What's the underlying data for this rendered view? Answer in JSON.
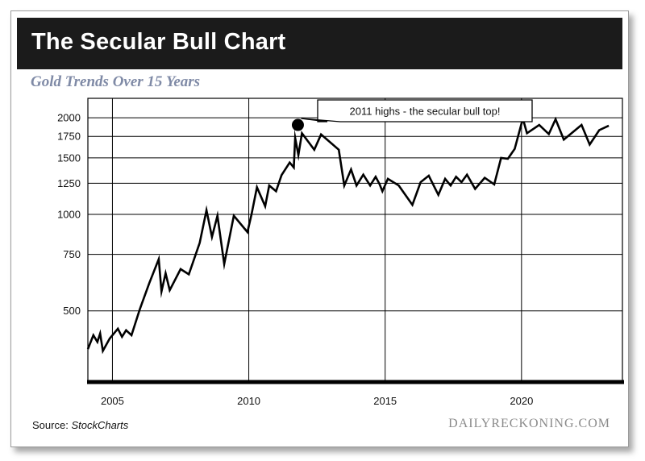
{
  "header": {
    "title": "The Secular Bull Chart",
    "subtitle": "Gold Trends Over 15 Years"
  },
  "footer": {
    "source_label": "Source:",
    "source_name": "StockCharts",
    "brand": "DAILYRECKONING.COM"
  },
  "colors": {
    "title_bar": "#1b1b1b",
    "subtitle": "#7f8aa6",
    "line": "#000000"
  },
  "chart_data": {
    "type": "line",
    "title": "The Secular Bull Chart",
    "subtitle": "Gold Trends Over 15 Years",
    "xlabel": "",
    "ylabel": "",
    "y_scale": "log",
    "grid": true,
    "xlim": [
      2004.1,
      2023.7
    ],
    "ylim": [
      300,
      2300
    ],
    "x_ticks": [
      "2005",
      "2010",
      "2015",
      "2020"
    ],
    "y_ticks": [
      "500",
      "750",
      "1000",
      "1250",
      "1500",
      "1750",
      "2000"
    ],
    "annotation": {
      "text": "2011 highs - the secular bull top!",
      "x": 2011.8,
      "y": 1900
    },
    "series": [
      {
        "x": [
          2004.1,
          2004.3,
          2004.45,
          2004.55,
          2004.65,
          2004.9,
          2005.2,
          2005.35,
          2005.5,
          2005.7,
          2006.0,
          2006.35,
          2006.7,
          2006.8,
          2006.95,
          2007.1,
          2007.5,
          2007.8,
          2008.2,
          2008.45,
          2008.65,
          2008.85,
          2009.1,
          2009.45,
          2009.95,
          2010.1,
          2010.3,
          2010.6,
          2010.75,
          2011.0,
          2011.2,
          2011.5,
          2011.65,
          2011.7,
          2011.82,
          2011.95,
          2012.4,
          2012.65,
          2013.3,
          2013.5,
          2013.75,
          2013.95,
          2014.2,
          2014.45,
          2014.65,
          2014.8,
          2014.9,
          2015.1,
          2015.5,
          2016.0,
          2016.3,
          2016.6,
          2016.95,
          2017.2,
          2017.4,
          2017.6,
          2017.8,
          2018.0,
          2018.3,
          2018.65,
          2019.0,
          2019.25,
          2019.5,
          2019.75,
          2020.05,
          2020.2,
          2020.65,
          2021.0,
          2021.25,
          2021.55,
          2022.2,
          2022.5,
          2022.85,
          2023.2
        ],
        "values": [
          380,
          420,
          400,
          425,
          375,
          410,
          440,
          415,
          435,
          420,
          505,
          610,
          725,
          575,
          655,
          580,
          675,
          650,
          815,
          1030,
          850,
          990,
          700,
          990,
          880,
          1000,
          1215,
          1060,
          1230,
          1180,
          1325,
          1450,
          1400,
          1730,
          1530,
          1790,
          1590,
          1775,
          1590,
          1230,
          1380,
          1230,
          1330,
          1230,
          1310,
          1240,
          1180,
          1290,
          1230,
          1070,
          1260,
          1320,
          1150,
          1290,
          1230,
          1310,
          1260,
          1330,
          1200,
          1300,
          1240,
          1500,
          1490,
          1600,
          1990,
          1790,
          1900,
          1780,
          1980,
          1710,
          1900,
          1650,
          1830,
          1890
        ]
      }
    ]
  }
}
